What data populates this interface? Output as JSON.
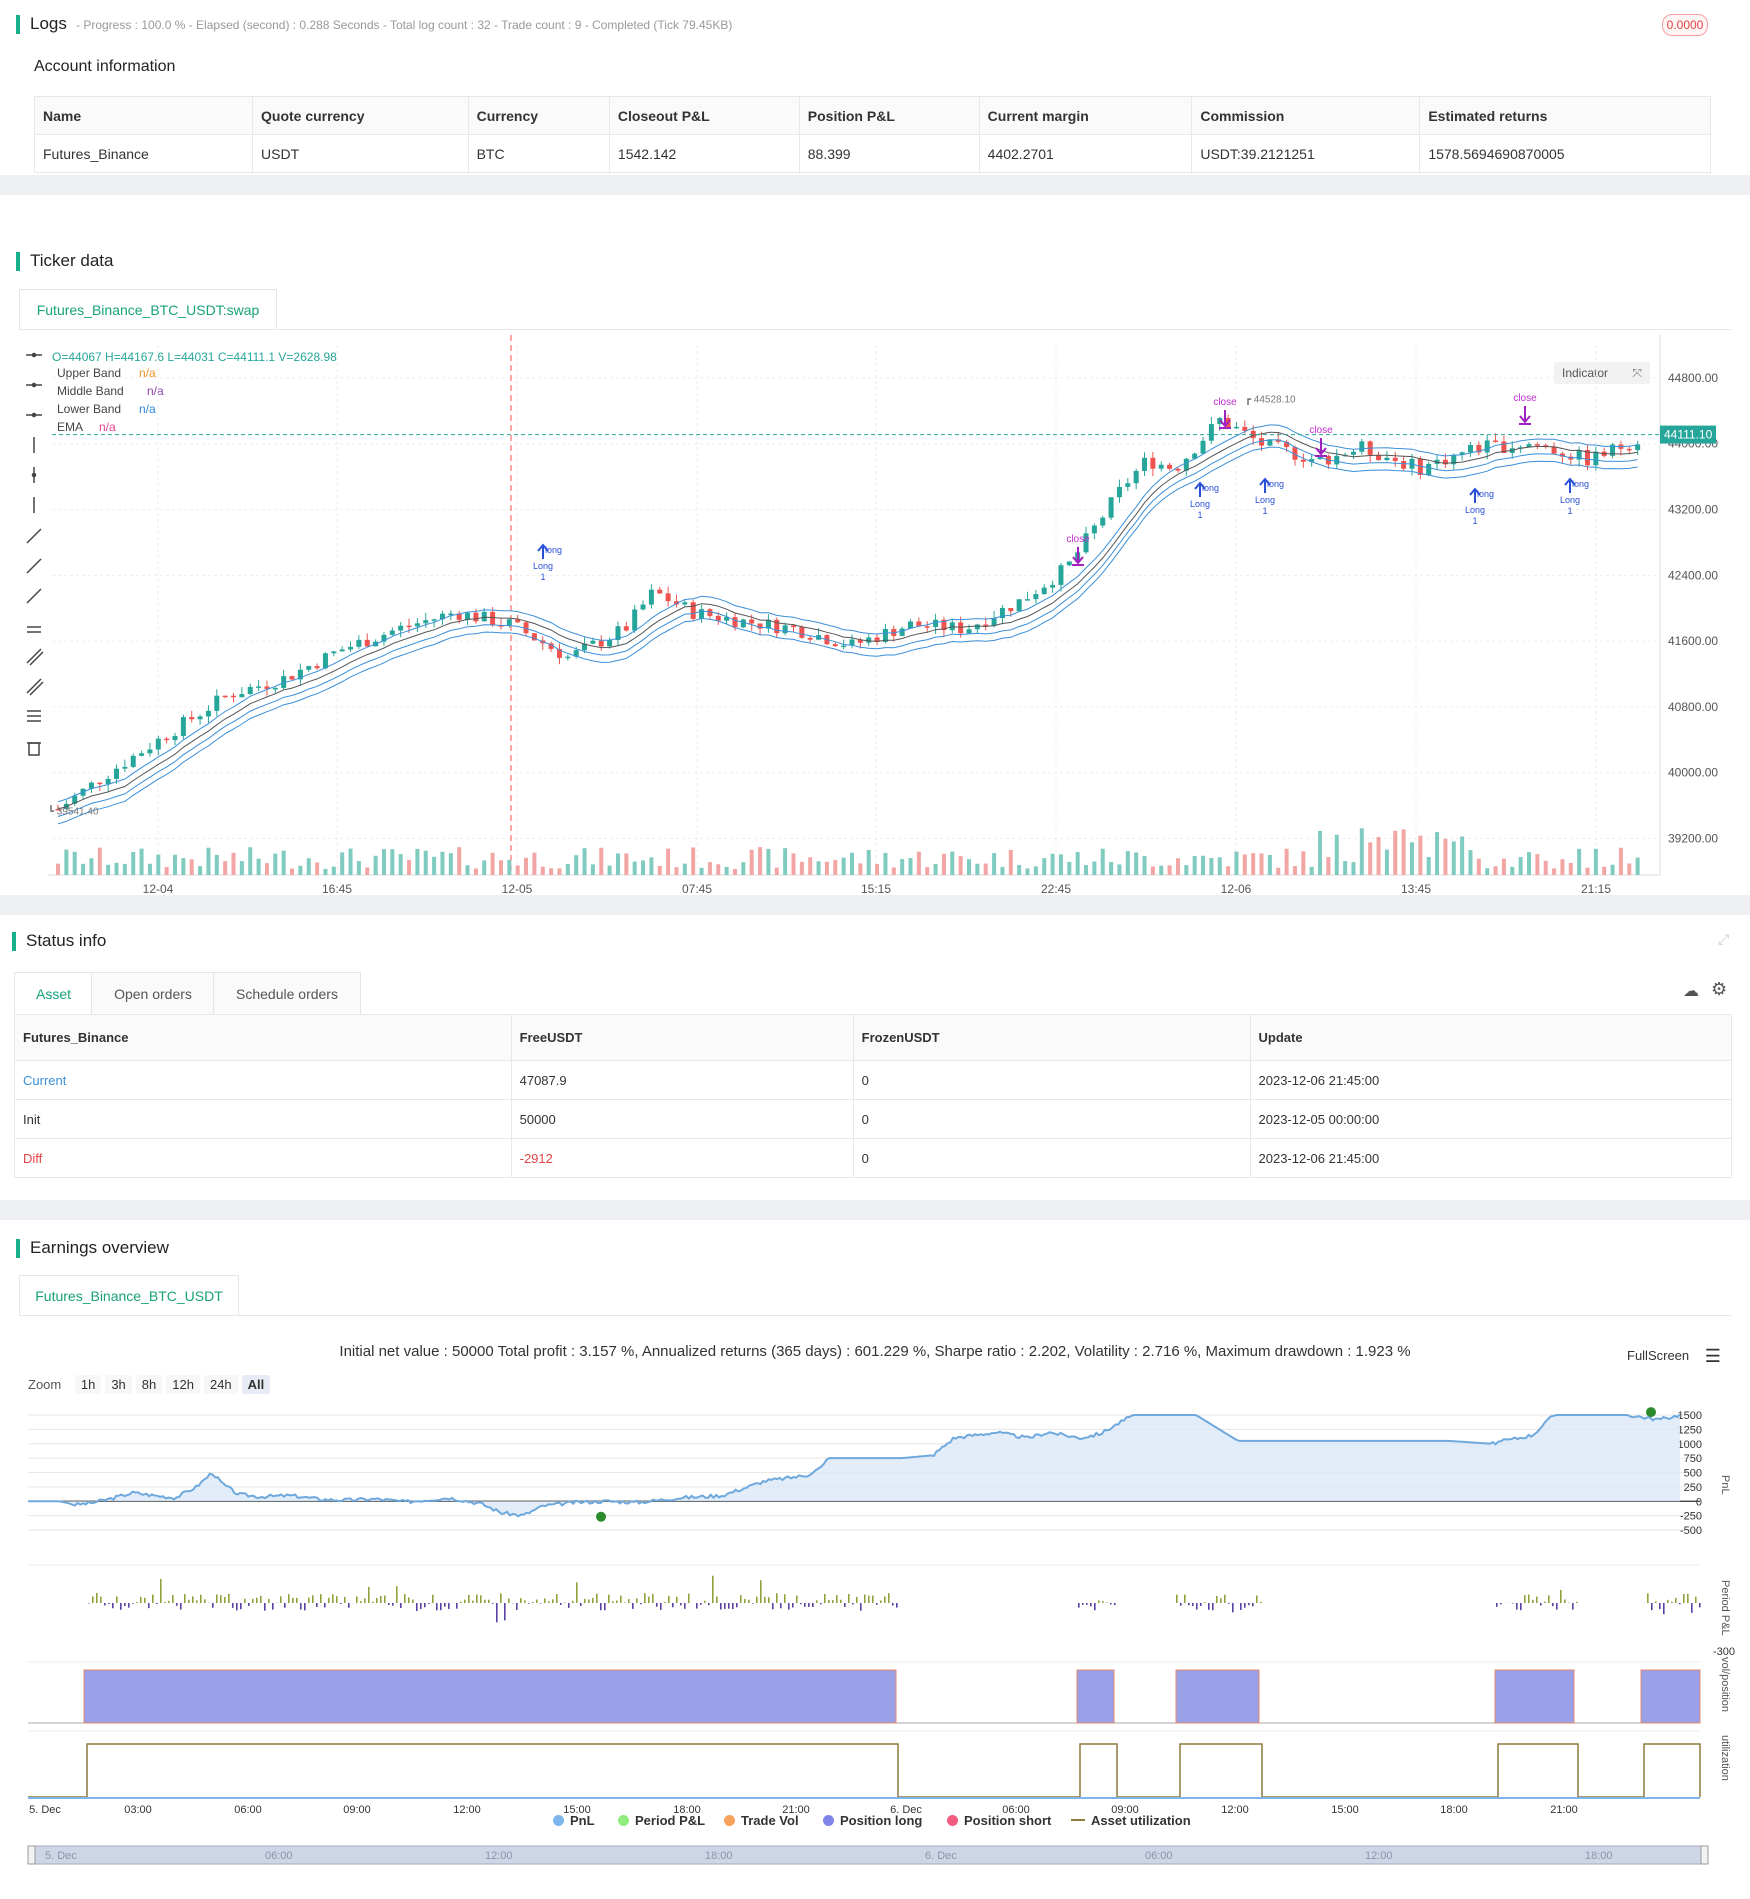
{
  "logs": {
    "title": "Logs",
    "status_line": "- Progress : 100.0 % - Elapsed (second) : 0.288  Seconds - Total log count : 32 - Trade count : 9 - Completed (Tick 79.45KB)",
    "badge": "0.0000"
  },
  "account": {
    "title": "Account information",
    "headers": [
      "Name",
      "Quote currency",
      "Currency",
      "Closeout P&L",
      "Position P&L",
      "Current margin",
      "Commission",
      "Estimated returns"
    ],
    "row": [
      "Futures_Binance",
      "USDT",
      "BTC",
      "1542.142",
      "88.399",
      "4402.2701",
      "USDT:39.2121251",
      "1578.5694690870005"
    ]
  },
  "ticker": {
    "title": "Ticker data",
    "tab": "Futures_Binance_BTC_USDT:swap",
    "ohlc": "O=44067 H=44167.6 L=44031 C=44111.1 V=2628.98",
    "legend": [
      {
        "label": "Upper Band",
        "value": "n/a",
        "color": "#f0932b"
      },
      {
        "label": "Middle Band",
        "value": "n/a",
        "color": "#8e44ad"
      },
      {
        "label": "Lower Band",
        "value": "n/a",
        "color": "#2e86de"
      },
      {
        "label": "EMA",
        "value": "n/a",
        "color": "#e84393"
      }
    ],
    "indicator_btn": "Indicator",
    "price_labels": [
      "44800.00",
      "44000.00",
      "43200.00",
      "42400.00",
      "41600.00",
      "40800.00",
      "40000.00",
      "39200.00"
    ],
    "current_price": "44111.10",
    "high_label": "44528.10",
    "low_label": "39541.40",
    "time_labels": [
      "12-04",
      "16:45",
      "12-05",
      "07:45",
      "15:15",
      "22:45",
      "12-06",
      "13:45",
      "21:15"
    ],
    "signals": {
      "close": "close",
      "long": "long",
      "Long": "Long",
      "one": "1"
    }
  },
  "status": {
    "title": "Status info",
    "tabs": [
      "Asset",
      "Open orders",
      "Schedule orders"
    ],
    "headers": [
      "Futures_Binance",
      "FreeUSDT",
      "FrozenUSDT",
      "Update"
    ],
    "rows": [
      [
        "Current",
        "47087.9",
        "0",
        "2023-12-06 21:45:00"
      ],
      [
        "Init",
        "50000",
        "0",
        "2023-12-05 00:00:00"
      ],
      [
        "Diff",
        "-2912",
        "0",
        "2023-12-06 21:45:00"
      ]
    ]
  },
  "earnings": {
    "title": "Earnings overview",
    "tab": "Futures_Binance_BTC_USDT",
    "summary": "Initial net value : 50000 Total profit : 3.157 %, Annualized returns (365 days) : 601.229 %, Sharpe ratio : 2.202, Volatility : 2.716 %, Maximum drawdown : 1.923 %",
    "fullscreen": "FullScreen",
    "zoom_label": "Zoom",
    "zoom_buttons": [
      "1h",
      "3h",
      "8h",
      "12h",
      "24h",
      "All"
    ],
    "pnl_ticks": [
      "1500",
      "1250",
      "1000",
      "750",
      "500",
      "250",
      "0",
      "-250",
      "-500"
    ],
    "period_tick": "-300",
    "axis_titles": [
      "PnL",
      "Period P&L",
      "vol/position",
      "utilization"
    ],
    "x_labels": [
      "5. Dec",
      "03:00",
      "06:00",
      "09:00",
      "12:00",
      "15:00",
      "18:00",
      "21:00",
      "6. Dec",
      "06:00",
      "09:00",
      "12:00",
      "15:00",
      "18:00",
      "21:00"
    ],
    "nav_labels": [
      "5. Dec",
      "06:00",
      "12:00",
      "18:00",
      "6. Dec",
      "06:00",
      "12:00",
      "18:00"
    ],
    "legend": [
      {
        "label": "PnL",
        "color": "#7cb5ec"
      },
      {
        "label": "Period P&L",
        "color": "#90ed7d"
      },
      {
        "label": "Trade Vol",
        "color": "#f7a35c"
      },
      {
        "label": "Position long",
        "color": "#8085e9"
      },
      {
        "label": "Position short",
        "color": "#f15c80"
      },
      {
        "label": "Asset utilization",
        "color": "#8d7a3f"
      }
    ]
  }
}
